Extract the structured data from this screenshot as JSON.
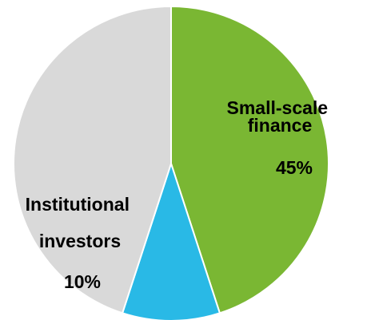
{
  "chart_data": {
    "type": "pie",
    "categories": [
      "Small-scale finance",
      "Institutional investors",
      null
    ],
    "values": [
      45,
      10,
      45
    ],
    "value_labels": [
      "45%",
      "10%",
      null
    ],
    "colors": [
      "#7ab733",
      "#29b9e6",
      "#d9d9d9"
    ]
  }
}
